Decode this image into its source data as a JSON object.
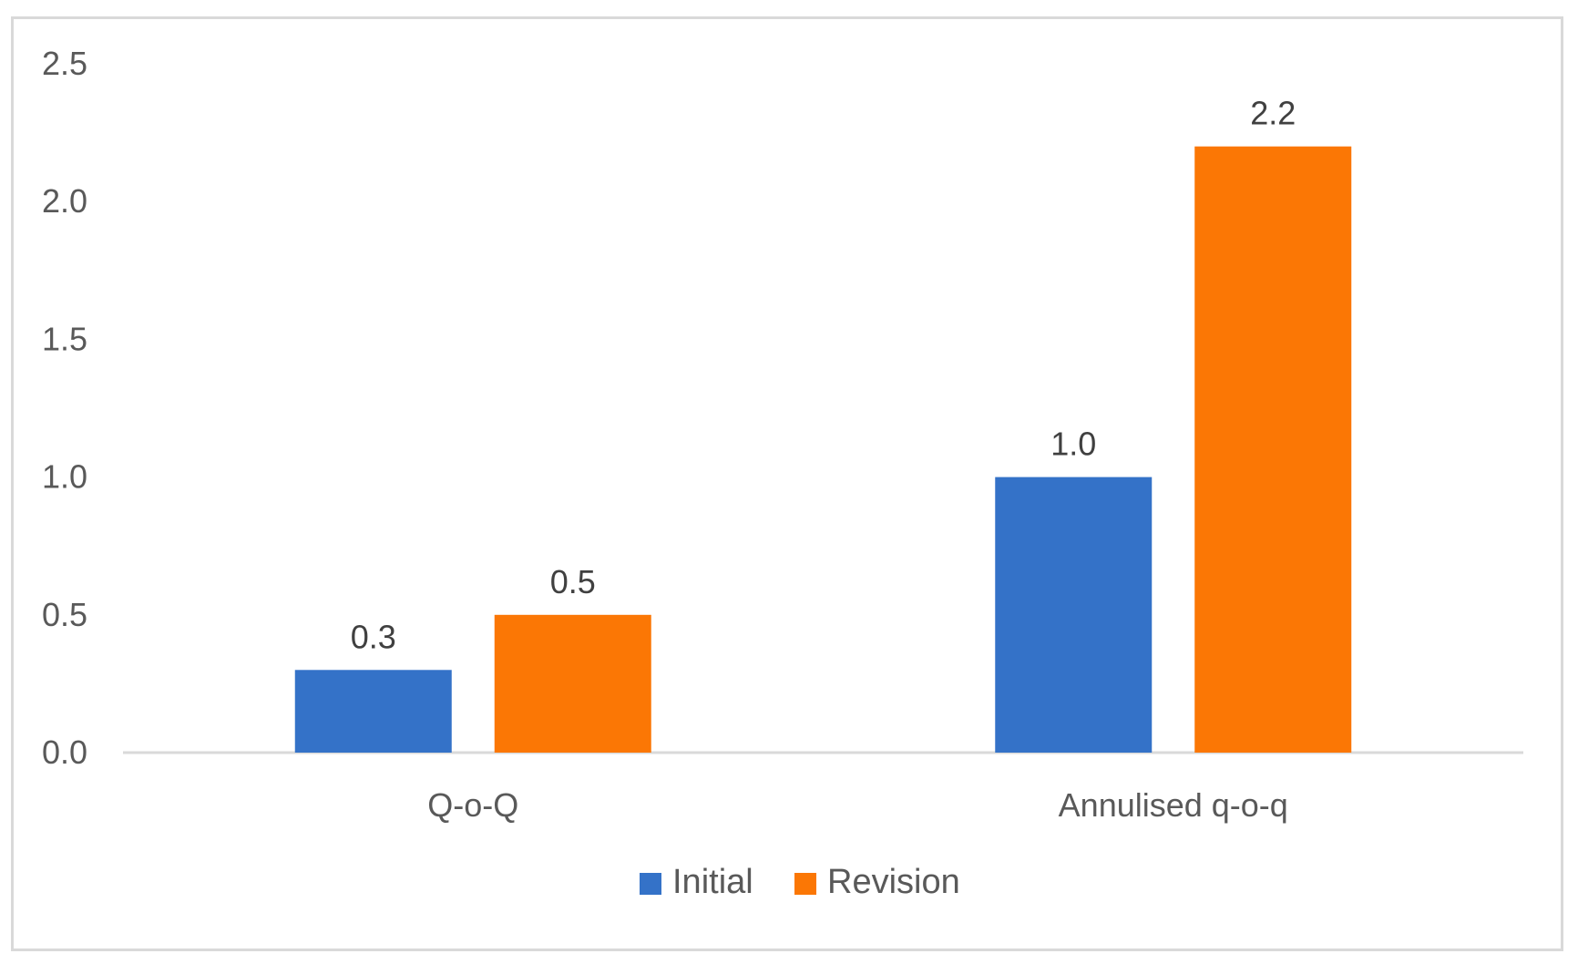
{
  "chart_data": {
    "type": "bar",
    "title": "",
    "xlabel": "",
    "ylabel": "",
    "categories": [
      "Q-o-Q",
      "Annulised q-o-q"
    ],
    "series": [
      {
        "name": "Initial",
        "values": [
          0.3,
          1.0
        ],
        "color": "#3472c8"
      },
      {
        "name": "Revision",
        "values": [
          0.5,
          2.2
        ],
        "color": "#fb7705"
      }
    ],
    "ylim": [
      0,
      2.5
    ],
    "yticks": [
      0.0,
      0.5,
      1.0,
      1.5,
      2.0,
      2.5
    ],
    "ytick_labels": [
      "0.0",
      "0.5",
      "1.0",
      "1.5",
      "2.0",
      "2.5"
    ],
    "data_labels": [
      [
        "0.3",
        "1.0"
      ],
      [
        "0.5",
        "2.2"
      ]
    ],
    "grid": false,
    "legend": "bottom-center",
    "axis_color": "#d9d9d9",
    "text_color": "#595959"
  }
}
